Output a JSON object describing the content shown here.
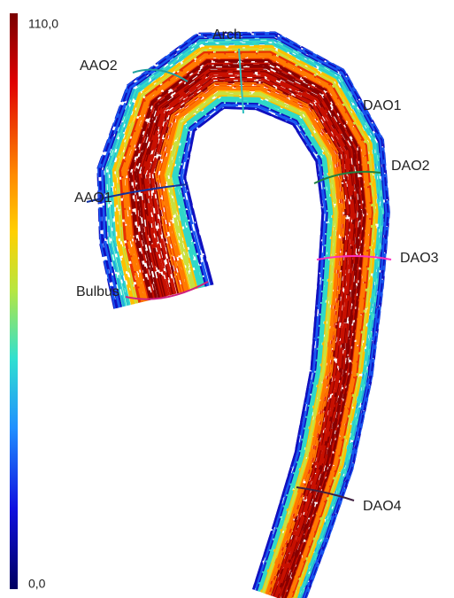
{
  "colorbar": {
    "max_label": "110,0",
    "min_label": "0,0"
  },
  "labels": {
    "arch": "Arch",
    "aao2": "AAO2",
    "dao1": "DAO1",
    "dao2": "DAO2",
    "aao1": "AAO1",
    "dao3": "DAO3",
    "bulbus": "Bulbus",
    "dao4": "DAO4"
  }
}
